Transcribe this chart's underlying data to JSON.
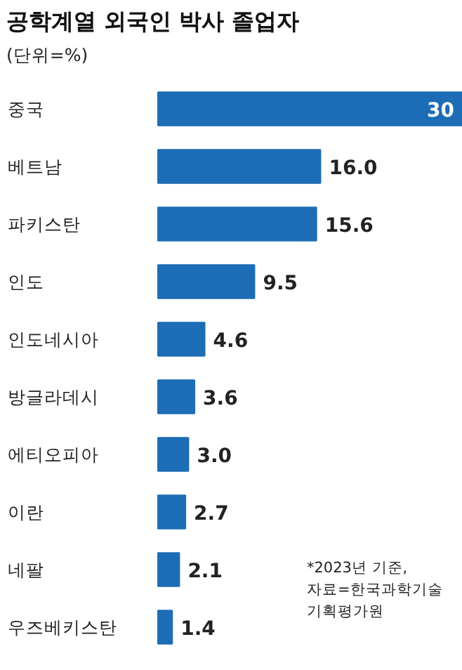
{
  "chart_data": {
    "type": "bar",
    "orientation": "horizontal",
    "title": "공학계열 외국인 박사 졸업자",
    "subtitle": "(단위=%)",
    "categories": [
      "중국",
      "베트남",
      "파키스탄",
      "인도",
      "인도네시아",
      "방글라데시",
      "에티오피아",
      "이란",
      "네팔",
      "우즈베키스탄"
    ],
    "values": [
      30,
      16.0,
      15.6,
      9.5,
      4.6,
      3.6,
      3.0,
      2.7,
      2.1,
      1.4
    ],
    "value_labels": [
      "30",
      "16.0",
      "15.6",
      "9.5",
      "4.6",
      "3.6",
      "3.0",
      "2.7",
      "2.1",
      "1.4"
    ],
    "color": "#1c6db5",
    "annotations": [
      "*2023년 기준,\n자료=한국과학기술\n기획평가원"
    ]
  }
}
